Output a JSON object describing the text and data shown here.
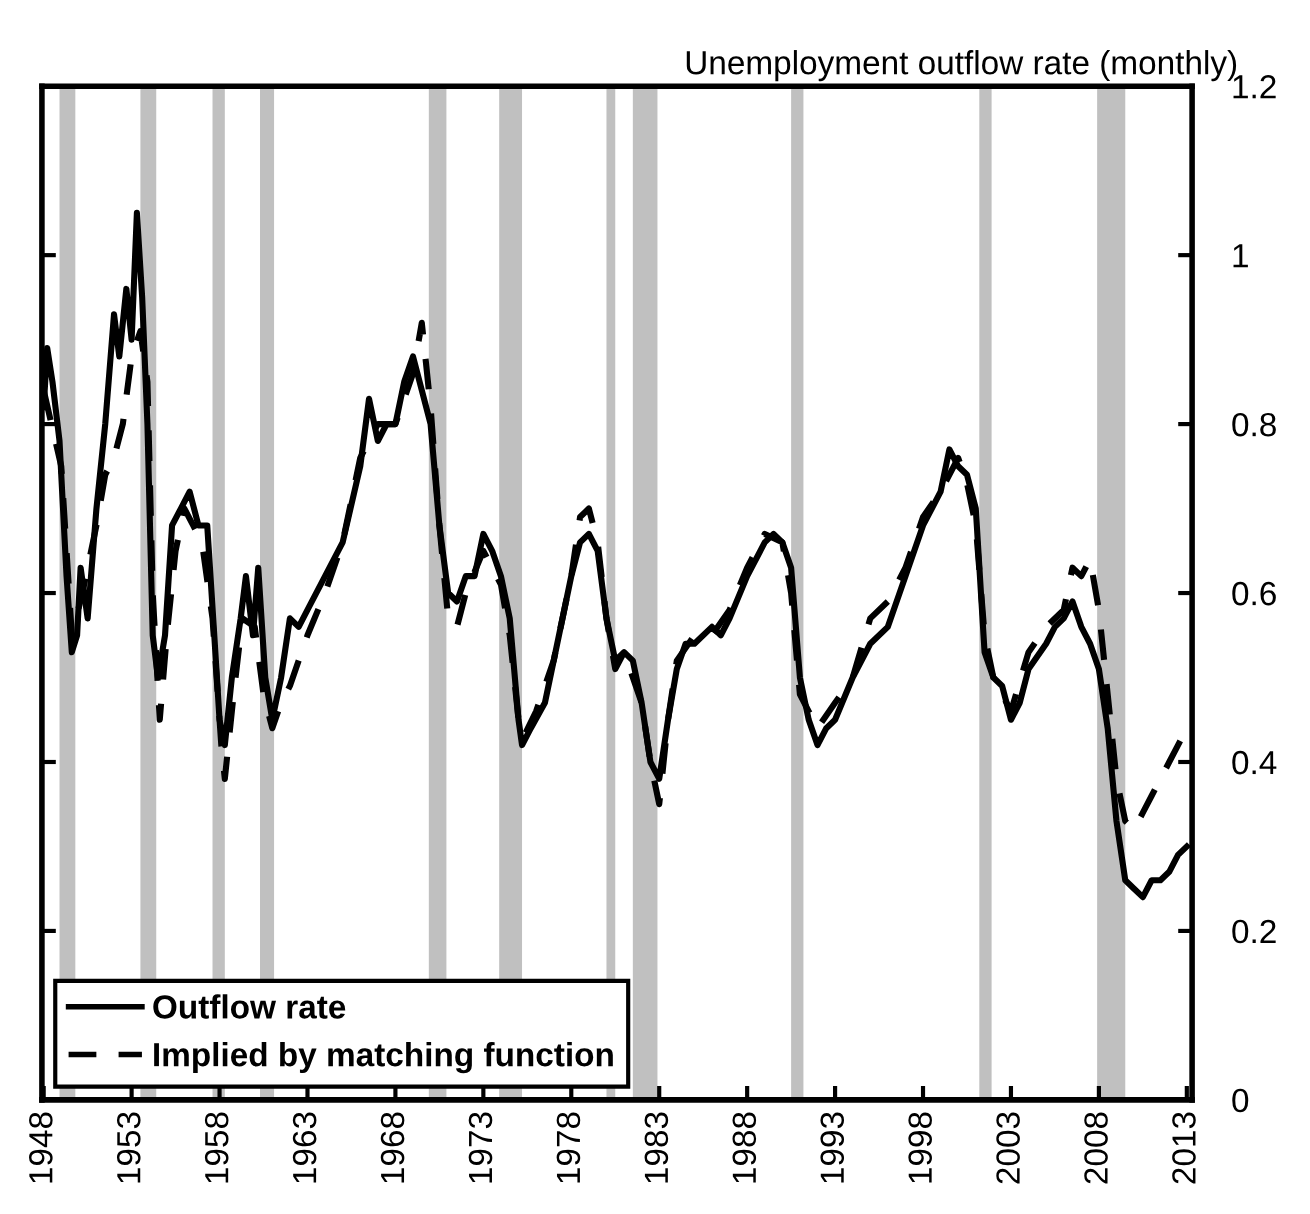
{
  "chart_data": {
    "type": "line",
    "ylabel": "Unemployment outflow rate (monthly)",
    "xlim": [
      1947.9,
      2013.3
    ],
    "xticks": [
      1948,
      1953,
      1958,
      1963,
      1968,
      1973,
      1978,
      1983,
      1988,
      1993,
      1998,
      2003,
      2008,
      2013
    ],
    "ylim": [
      0,
      1.2
    ],
    "yticks": [
      0,
      0.2,
      0.4,
      0.6,
      0.8,
      1,
      1.2
    ],
    "grid": false,
    "legend": "bottom left",
    "bands": [
      {
        "axis": "x",
        "from": 1948.9,
        "to": 1949.8,
        "color": "#c0c0c0"
      },
      {
        "axis": "x",
        "from": 1953.5,
        "to": 1954.4,
        "color": "#c0c0c0"
      },
      {
        "axis": "x",
        "from": 1957.6,
        "to": 1958.3,
        "color": "#c0c0c0"
      },
      {
        "axis": "x",
        "from": 1960.3,
        "to": 1961.1,
        "color": "#c0c0c0"
      },
      {
        "axis": "x",
        "from": 1969.9,
        "to": 1970.9,
        "color": "#c0c0c0"
      },
      {
        "axis": "x",
        "from": 1973.9,
        "to": 1975.2,
        "color": "#c0c0c0"
      },
      {
        "axis": "x",
        "from": 1980.0,
        "to": 1980.5,
        "color": "#c0c0c0"
      },
      {
        "axis": "x",
        "from": 1981.5,
        "to": 1982.9,
        "color": "#c0c0c0"
      },
      {
        "axis": "x",
        "from": 1990.5,
        "to": 1991.2,
        "color": "#c0c0c0"
      },
      {
        "axis": "x",
        "from": 2001.2,
        "to": 2001.9,
        "color": "#c0c0c0"
      },
      {
        "axis": "x",
        "from": 2007.9,
        "to": 2009.5,
        "color": "#c0c0c0"
      }
    ],
    "series": [
      {
        "name": "Outflow rate",
        "color": "#000000",
        "line_style": "solid",
        "x": [
          1948.0,
          1948.2,
          1948.5,
          1948.9,
          1949.3,
          1949.6,
          1949.9,
          1950.1,
          1950.5,
          1951.0,
          1951.5,
          1952.0,
          1952.3,
          1952.7,
          1953.0,
          1953.3,
          1953.6,
          1953.9,
          1954.2,
          1954.5,
          1954.9,
          1955.3,
          1955.8,
          1956.3,
          1956.8,
          1957.3,
          1957.7,
          1958.0,
          1958.3,
          1958.7,
          1959.2,
          1959.5,
          1959.9,
          1960.2,
          1960.6,
          1961.0,
          1961.5,
          1962.0,
          1962.5,
          1963,
          1964,
          1965,
          1966,
          1966.5,
          1967,
          1967.5,
          1968,
          1968.5,
          1969,
          1969.5,
          1970,
          1970.5,
          1971,
          1971.5,
          1972,
          1972.5,
          1973,
          1973.5,
          1974,
          1974.5,
          1975,
          1975.2,
          1975.7,
          1976.5,
          1977,
          1977.5,
          1978,
          1978.5,
          1979,
          1979.5,
          1980,
          1980.5,
          1981,
          1981.5,
          1982,
          1982.5,
          1983,
          1983.5,
          1984,
          1984.5,
          1985,
          1986,
          1986.5,
          1987,
          1988,
          1989,
          1989.5,
          1990,
          1990.5,
          1991,
          1991.5,
          1992,
          1992.5,
          1993,
          1994,
          1995,
          1996,
          1997,
          1998,
          1999,
          1999.5,
          2000,
          2000.5,
          2001,
          2001.5,
          2002,
          2002.5,
          2003,
          2003.5,
          2004,
          2005,
          2005.5,
          2006,
          2006.5,
          2007,
          2007.5,
          2008,
          2008.5,
          2009,
          2009.5,
          2010,
          2010.5,
          2011,
          2011.5,
          2012,
          2012.5,
          2013
        ],
        "values": [
          0.82,
          0.89,
          0.85,
          0.78,
          0.62,
          0.53,
          0.55,
          0.63,
          0.57,
          0.7,
          0.8,
          0.93,
          0.88,
          0.96,
          0.9,
          1.05,
          0.95,
          0.8,
          0.55,
          0.5,
          0.55,
          0.68,
          0.7,
          0.72,
          0.68,
          0.68,
          0.55,
          0.45,
          0.42,
          0.5,
          0.57,
          0.62,
          0.55,
          0.63,
          0.5,
          0.45,
          0.5,
          0.57,
          0.56,
          0.58,
          0.62,
          0.66,
          0.75,
          0.83,
          0.78,
          0.8,
          0.8,
          0.85,
          0.88,
          0.84,
          0.8,
          0.68,
          0.6,
          0.59,
          0.62,
          0.62,
          0.67,
          0.65,
          0.62,
          0.57,
          0.45,
          0.42,
          0.44,
          0.47,
          0.52,
          0.57,
          0.62,
          0.66,
          0.67,
          0.65,
          0.57,
          0.52,
          0.53,
          0.52,
          0.47,
          0.4,
          0.38,
          0.45,
          0.51,
          0.54,
          0.54,
          0.56,
          0.55,
          0.57,
          0.62,
          0.66,
          0.67,
          0.66,
          0.63,
          0.5,
          0.45,
          0.42,
          0.44,
          0.45,
          0.5,
          0.54,
          0.56,
          0.62,
          0.68,
          0.72,
          0.77,
          0.75,
          0.74,
          0.7,
          0.53,
          0.5,
          0.49,
          0.45,
          0.47,
          0.51,
          0.54,
          0.56,
          0.57,
          0.59,
          0.56,
          0.54,
          0.51,
          0.44,
          0.33,
          0.26,
          0.25,
          0.24,
          0.26,
          0.26,
          0.27,
          0.29,
          0.3
        ]
      },
      {
        "name": "Implied by matching function",
        "color": "#000000",
        "line_style": "dashed",
        "x": [
          1948,
          1949,
          1949.6,
          1950.2,
          1951,
          1951.5,
          1952,
          1952.5,
          1953,
          1953.5,
          1953.9,
          1954.2,
          1954.6,
          1955,
          1955.5,
          1956,
          1956.5,
          1957,
          1957.6,
          1958.1,
          1958.3,
          1958.8,
          1959.3,
          1960,
          1960.5,
          1961,
          1961.5,
          1962,
          1962.5,
          1963,
          1964,
          1965,
          1966,
          1967,
          1968,
          1969,
          1969.5,
          1970,
          1970.5,
          1971,
          1971.5,
          1972,
          1973,
          1974,
          1974.5,
          1975,
          1975.3,
          1976,
          1977,
          1978,
          1978.5,
          1979,
          1979.5,
          1980,
          1980.5,
          1981,
          1982,
          1982.5,
          1983,
          1983.5,
          1984,
          1985,
          1986,
          1987,
          1988,
          1989,
          1990,
          1990.5,
          1991,
          1991.5,
          1992,
          1993,
          1994,
          1995,
          1996,
          1997,
          1998,
          1999,
          2000,
          2000.5,
          2001,
          2001.5,
          2002,
          2003,
          2004,
          2005,
          2006,
          2006.5,
          2007,
          2007.5,
          2008,
          2008.5,
          2009,
          2009.5,
          2010,
          2010.5,
          2011,
          2011.5,
          2012,
          2012.5,
          2013
        ],
        "values": [
          0.84,
          0.75,
          0.55,
          0.6,
          0.68,
          0.74,
          0.76,
          0.8,
          0.88,
          0.91,
          0.85,
          0.6,
          0.45,
          0.55,
          0.65,
          0.7,
          0.68,
          0.66,
          0.57,
          0.42,
          0.38,
          0.48,
          0.57,
          0.56,
          0.48,
          0.44,
          0.47,
          0.49,
          0.52,
          0.55,
          0.6,
          0.66,
          0.76,
          0.8,
          0.8,
          0.86,
          0.92,
          0.82,
          0.68,
          0.57,
          0.56,
          0.6,
          0.65,
          0.61,
          0.55,
          0.45,
          0.43,
          0.46,
          0.52,
          0.62,
          0.69,
          0.7,
          0.66,
          0.57,
          0.51,
          0.53,
          0.47,
          0.4,
          0.35,
          0.45,
          0.52,
          0.55,
          0.55,
          0.58,
          0.63,
          0.67,
          0.66,
          0.6,
          0.48,
          0.46,
          0.44,
          0.47,
          0.5,
          0.57,
          0.59,
          0.63,
          0.69,
          0.72,
          0.76,
          0.73,
          0.68,
          0.55,
          0.5,
          0.46,
          0.53,
          0.56,
          0.58,
          0.63,
          0.62,
          0.64,
          0.58,
          0.48,
          0.38,
          0.33,
          0.32,
          0.34,
          0.36,
          0.38,
          0.4,
          0.42,
          0.44
        ]
      }
    ]
  }
}
